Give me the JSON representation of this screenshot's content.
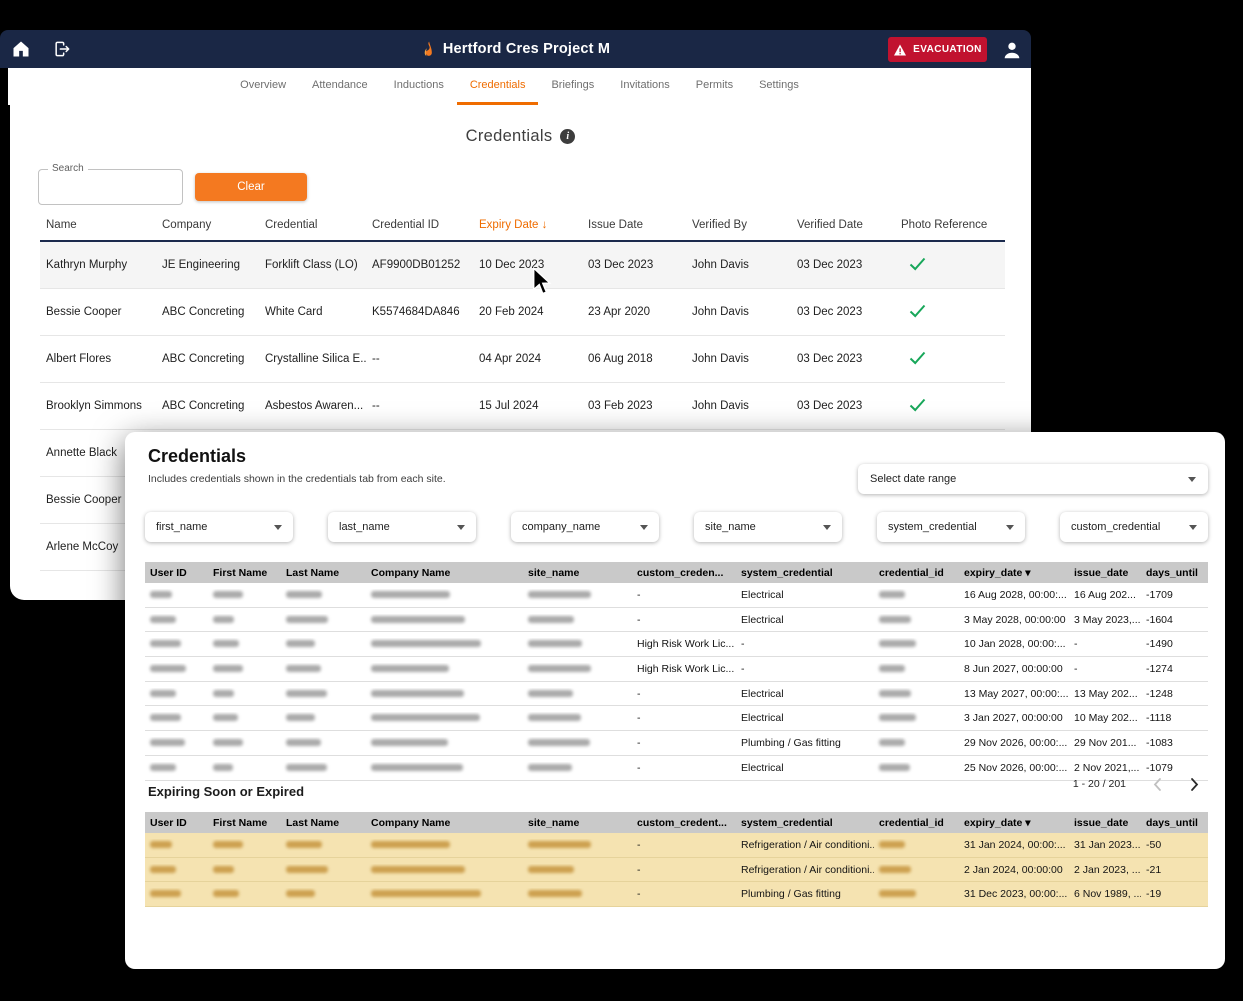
{
  "app": {
    "title": "Hertford Cres Project M",
    "evacuation_label": "EVACUATION",
    "accent_orange": "#f47920",
    "navy": "#1a2745",
    "evacuation_red": "#c1122f",
    "check_green": "#18a75a"
  },
  "tabs": [
    {
      "label": "Overview",
      "active": false
    },
    {
      "label": "Attendance",
      "active": false
    },
    {
      "label": "Inductions",
      "active": false
    },
    {
      "label": "Credentials",
      "active": true
    },
    {
      "label": "Briefings",
      "active": false
    },
    {
      "label": "Invitations",
      "active": false
    },
    {
      "label": "Permits",
      "active": false
    },
    {
      "label": "Settings",
      "active": false
    }
  ],
  "main": {
    "title": "Credentials",
    "info_icon_glyph": "i",
    "search": {
      "label": "Search",
      "value": ""
    },
    "clear_label": "Clear",
    "columns": [
      "Name",
      "Company",
      "Credential",
      "Credential ID",
      "Expiry Date ↓",
      "Issue Date",
      "Verified By",
      "Verified Date",
      "Photo Reference"
    ],
    "sorted_column": "Expiry Date ↓",
    "rows": [
      {
        "name": "Kathryn Murphy",
        "company": "JE Engineering",
        "credential": "Forklift Class (LO)",
        "credential_id": "AF9900DB01252",
        "expiry_date": "10 Dec 2023",
        "issue_date": "03 Dec 2023",
        "verified_by": "John Davis",
        "verified_date": "03 Dec 2023",
        "photo_verified": true,
        "highlighted": true
      },
      {
        "name": "Bessie Cooper",
        "company": "ABC Concreting",
        "credential": "White Card",
        "credential_id": "K5574684DA846",
        "expiry_date": "20 Feb 2024",
        "issue_date": "23 Apr 2020",
        "verified_by": "John Davis",
        "verified_date": "03 Dec 2023",
        "photo_verified": true,
        "highlighted": false
      },
      {
        "name": "Albert Flores",
        "company": "ABC Concreting",
        "credential": "Crystalline Silica E...",
        "credential_id": "--",
        "expiry_date": "04 Apr 2024",
        "issue_date": "06 Aug 2018",
        "verified_by": "John Davis",
        "verified_date": "03 Dec 2023",
        "photo_verified": true,
        "highlighted": false
      },
      {
        "name": "Brooklyn Simmons",
        "company": "ABC Concreting",
        "credential": "Asbestos Awaren...",
        "credential_id": "--",
        "expiry_date": "15 Jul 2024",
        "issue_date": "03 Feb 2023",
        "verified_by": "John Davis",
        "verified_date": "03 Dec 2023",
        "photo_verified": true,
        "highlighted": false
      },
      {
        "name": "Annette Black",
        "company": "",
        "credential": "",
        "credential_id": "",
        "expiry_date": "",
        "issue_date": "",
        "verified_by": "",
        "verified_date": "",
        "photo_verified": null,
        "highlighted": false
      },
      {
        "name": "Bessie Cooper",
        "company": "",
        "credential": "",
        "credential_id": "",
        "expiry_date": "",
        "issue_date": "",
        "verified_by": "",
        "verified_date": "",
        "photo_verified": null,
        "highlighted": false
      },
      {
        "name": "Arlene McCoy",
        "company": "",
        "credential": "",
        "credential_id": "",
        "expiry_date": "",
        "issue_date": "",
        "verified_by": "",
        "verified_date": "",
        "photo_verified": null,
        "highlighted": false
      }
    ]
  },
  "report": {
    "title": "Credentials",
    "subtitle": "Includes credentials shown in the credentials tab from each site.",
    "date_range_placeholder": "Select date range",
    "filters": [
      "first_name",
      "last_name",
      "company_name",
      "site_name",
      "system_credential",
      "custom_credential"
    ],
    "credentials_table": {
      "columns": [
        "User ID",
        "First Name",
        "Last Name",
        "Company Name",
        "site_name",
        "custom_creden...",
        "system_credential",
        "credential_id",
        "expiry_date ▾",
        "issue_date",
        "days_until"
      ],
      "rows": [
        {
          "user_id": null,
          "first_name": null,
          "last_name": null,
          "company_name": null,
          "site_name": null,
          "custom_credential": "-",
          "system_credential": "Electrical",
          "credential_id": null,
          "expiry_date": "16 Aug 2028, 00:00:...",
          "issue_date": "16 Aug 202...",
          "days_until": "-1709"
        },
        {
          "user_id": null,
          "first_name": null,
          "last_name": null,
          "company_name": null,
          "site_name": null,
          "custom_credential": "-",
          "system_credential": "Electrical",
          "credential_id": null,
          "expiry_date": "3 May 2028, 00:00:00",
          "issue_date": "3 May 2023,...",
          "days_until": "-1604"
        },
        {
          "user_id": null,
          "first_name": null,
          "last_name": null,
          "company_name": null,
          "site_name": null,
          "custom_credential": "High Risk Work Lic...",
          "system_credential": "-",
          "credential_id": null,
          "expiry_date": "10 Jan 2028, 00:00:...",
          "issue_date": "-",
          "days_until": "-1490"
        },
        {
          "user_id": null,
          "first_name": null,
          "last_name": null,
          "company_name": null,
          "site_name": null,
          "custom_credential": "High Risk Work Lic...",
          "system_credential": "-",
          "credential_id": null,
          "expiry_date": "8 Jun 2027, 00:00:00",
          "issue_date": "-",
          "days_until": "-1274"
        },
        {
          "user_id": null,
          "first_name": null,
          "last_name": null,
          "company_name": null,
          "site_name": null,
          "custom_credential": "-",
          "system_credential": "Electrical",
          "credential_id": null,
          "expiry_date": "13 May 2027, 00:00:...",
          "issue_date": "13 May 202...",
          "days_until": "-1248"
        },
        {
          "user_id": null,
          "first_name": null,
          "last_name": null,
          "company_name": null,
          "site_name": null,
          "custom_credential": "-",
          "system_credential": "Electrical",
          "credential_id": null,
          "expiry_date": "3 Jan 2027, 00:00:00",
          "issue_date": "10 May 202...",
          "days_until": "-1118"
        },
        {
          "user_id": null,
          "first_name": null,
          "last_name": null,
          "company_name": null,
          "site_name": null,
          "custom_credential": "-",
          "system_credential": "Plumbing / Gas fitting",
          "credential_id": null,
          "expiry_date": "29 Nov 2026, 00:00:...",
          "issue_date": "29 Nov 201...",
          "days_until": "-1083"
        },
        {
          "user_id": null,
          "first_name": null,
          "last_name": null,
          "company_name": null,
          "site_name": null,
          "custom_credential": "-",
          "system_credential": "Electrical",
          "credential_id": null,
          "expiry_date": "25 Nov 2026, 00:00:...",
          "issue_date": "2 Nov 2021,...",
          "days_until": "-1079"
        }
      ],
      "pagination": "1 - 20 / 201"
    },
    "expiring_title": "Expiring Soon or Expired",
    "expiring_table": {
      "columns": [
        "User ID",
        "First Name",
        "Last Name",
        "Company Name",
        "site_name",
        "custom_credent...",
        "system_credential",
        "credential_id",
        "expiry_date ▾",
        "issue_date",
        "days_until"
      ],
      "rows": [
        {
          "user_id": null,
          "first_name": null,
          "last_name": null,
          "company_name": null,
          "site_name": null,
          "custom_credential": "-",
          "system_credential": "Refrigeration / Air conditioni...",
          "credential_id": null,
          "expiry_date": "31 Jan 2024, 00:00:...",
          "issue_date": "31 Jan 2023...",
          "days_until": "-50"
        },
        {
          "user_id": null,
          "first_name": null,
          "last_name": null,
          "company_name": null,
          "site_name": null,
          "custom_credential": "-",
          "system_credential": "Refrigeration / Air conditioni...",
          "credential_id": null,
          "expiry_date": "2 Jan 2024, 00:00:00",
          "issue_date": "2 Jan 2023, ...",
          "days_until": "-21"
        },
        {
          "user_id": null,
          "first_name": null,
          "last_name": null,
          "company_name": null,
          "site_name": null,
          "custom_credential": "-",
          "system_credential": "Plumbing / Gas fitting",
          "credential_id": null,
          "expiry_date": "31 Dec 2023, 00:00:...",
          "issue_date": "6 Nov 1989, ...",
          "days_until": "-19"
        }
      ]
    }
  }
}
